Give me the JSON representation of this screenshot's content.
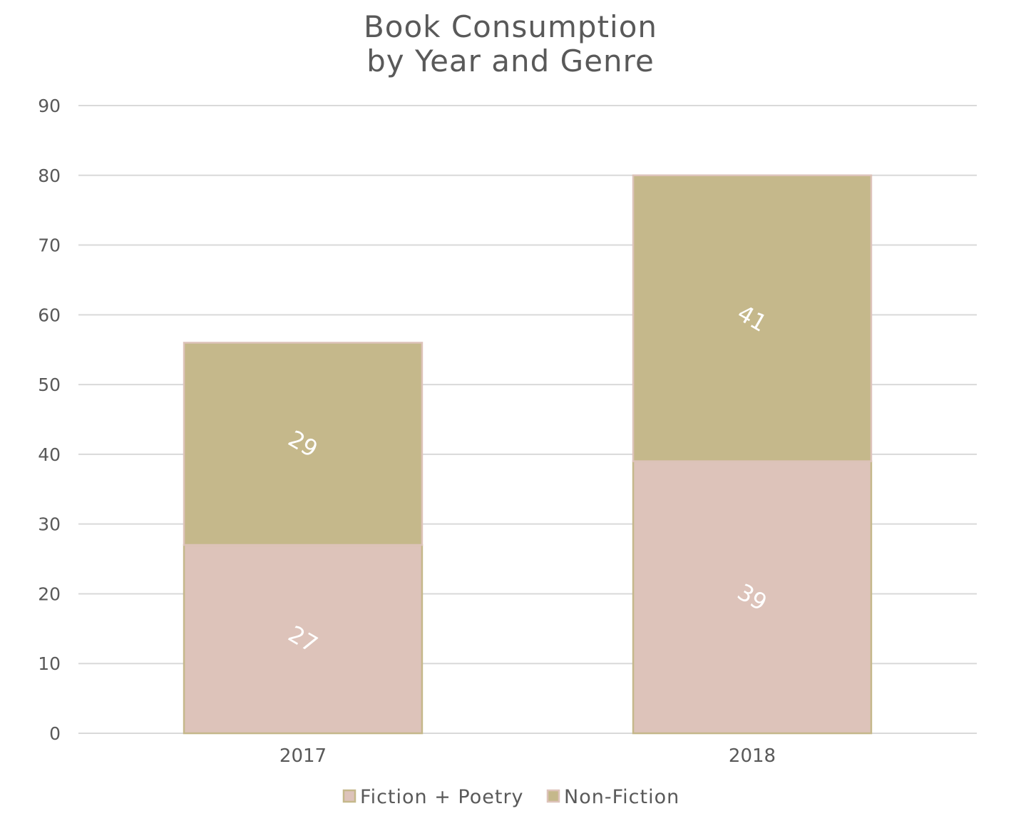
{
  "chart_data": {
    "type": "bar",
    "stacked": true,
    "title_lines": [
      "Book Consumption",
      "by Year and Genre"
    ],
    "categories": [
      "2017",
      "2018"
    ],
    "series": [
      {
        "name": "Fiction + Poetry",
        "values": [
          27,
          39
        ],
        "color": "#ddc3ba"
      },
      {
        "name": "Non-Fiction",
        "values": [
          29,
          41
        ],
        "color": "#c5b88b"
      }
    ],
    "ylim": [
      0,
      90
    ],
    "y_ticks": [
      0,
      10,
      20,
      30,
      40,
      50,
      60,
      70,
      80,
      90
    ],
    "grid": true,
    "legend_position": "bottom",
    "data_label_rotation": 30,
    "gridline_color": "#d9d9d9",
    "bar_fiction_outline_color": "#c5b88b",
    "bar_nonfiction_outline_color": "#ddc3ba"
  }
}
